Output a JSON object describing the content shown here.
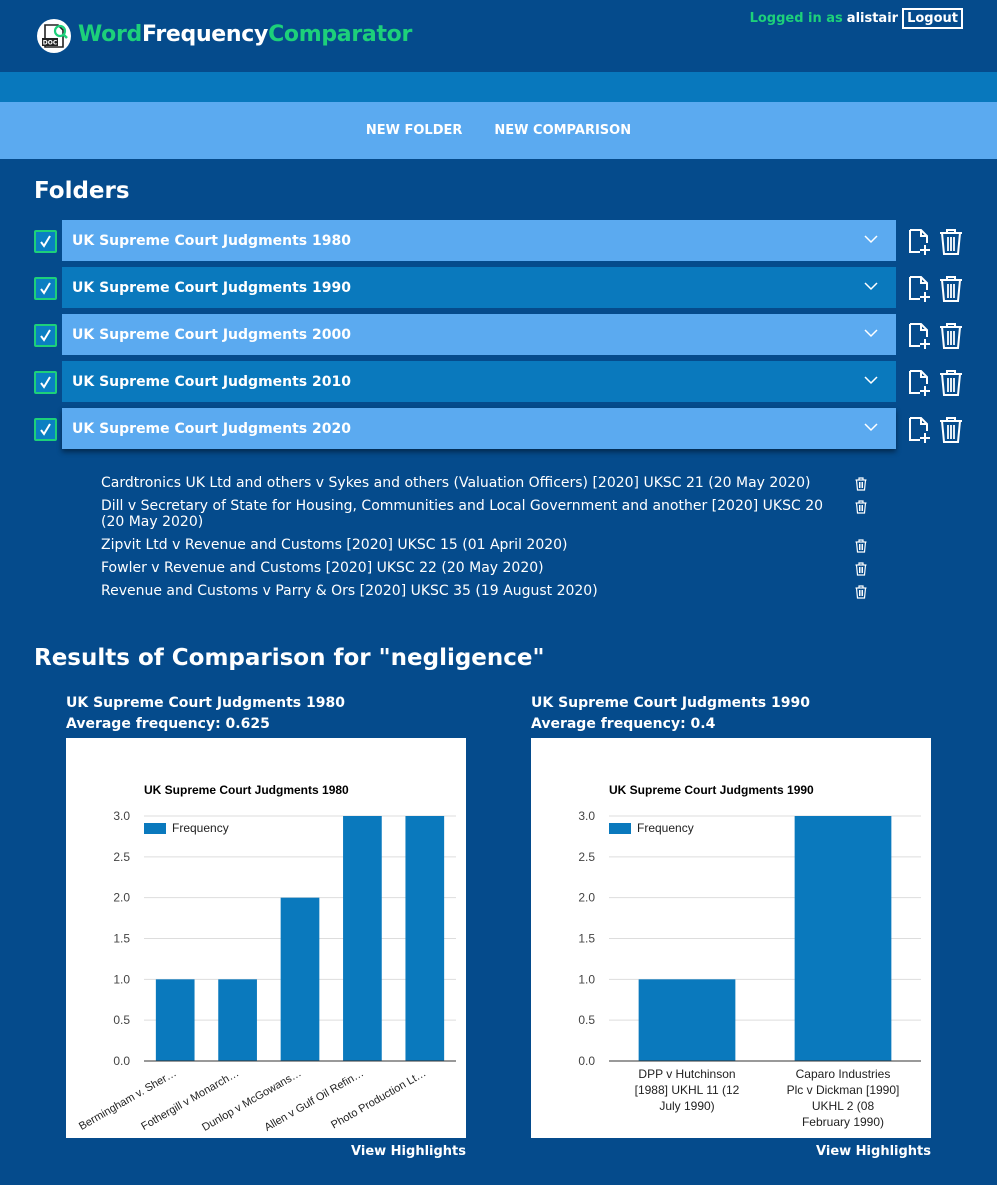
{
  "app": {
    "name_part1": "Word",
    "name_part2": "Frequency",
    "name_part3": "Comparator",
    "logo_text": "DOC"
  },
  "auth": {
    "logged_in_label": "Logged in as",
    "username": "alistair",
    "logout_label": "Logout"
  },
  "nav": {
    "new_folder": "NEW FOLDER",
    "new_comparison": "NEW COMPARISON"
  },
  "folders_heading": "Folders",
  "folders": [
    {
      "title": "UK Supreme Court Judgments 1980",
      "checked": true
    },
    {
      "title": "UK Supreme Court Judgments 1990",
      "checked": true
    },
    {
      "title": "UK Supreme Court Judgments 2000",
      "checked": true
    },
    {
      "title": "UK Supreme Court Judgments 2010",
      "checked": true
    },
    {
      "title": "UK Supreme Court Judgments 2020",
      "checked": true,
      "expanded": true
    }
  ],
  "documents_2020": [
    "Cardtronics UK Ltd and others v Sykes and others (Valuation Officers) [2020] UKSC 21 (20 May 2020)",
    "Dill v Secretary of State for Housing, Communities and Local Government and another [2020] UKSC 20 (20 May 2020)",
    "Zipvit Ltd v Revenue and Customs [2020] UKSC 15 (01 April 2020)",
    "Fowler v Revenue and Customs [2020] UKSC 22 (20 May 2020)",
    "Revenue and Customs v Parry & Ors [2020] UKSC 35 (19 August 2020)"
  ],
  "results": {
    "heading": "Results of Comparison for \"negligence\"",
    "columns": [
      {
        "title": "UK Supreme Court Judgments 1980",
        "average": "Average frequency: 0.625",
        "view_label": "View Highlights"
      },
      {
        "title": "UK Supreme Court Judgments 1990",
        "average": "Average frequency: 0.4",
        "view_label": "View Highlights"
      }
    ]
  },
  "colors": {
    "bar": "#0a79bd",
    "brand_green": "#1dd07a",
    "background": "#054b8c"
  },
  "chart_data": [
    {
      "type": "bar",
      "title": "UK Supreme Court Judgments 1980",
      "legend": [
        "Frequency"
      ],
      "legend_position": "top-left",
      "categories": [
        "Bermingham v. Sher…",
        "Fothergill v Monarch…",
        "Dunlop v McGowans…",
        "Allen v Gulf Oil Refin…",
        "Photo Production Lt…"
      ],
      "values": [
        1,
        1,
        2,
        3,
        3
      ],
      "ylim": [
        0,
        3
      ],
      "yticks": [
        "0.0",
        "0.5",
        "1.0",
        "1.5",
        "2.0",
        "2.5",
        "3.0"
      ],
      "xlabel": "",
      "ylabel": "",
      "grid": true
    },
    {
      "type": "bar",
      "title": "UK Supreme Court Judgments 1990",
      "legend": [
        "Frequency"
      ],
      "legend_position": "top-left",
      "categories": [
        "DPP v Hutchinson [1988] UKHL 11 (12 July 1990)",
        "Caparo Industries Plc v Dickman [1990] UKHL 2 (08 February 1990)"
      ],
      "category_lines": [
        [
          "DPP v Hutchinson",
          "[1988] UKHL 11 (12",
          "July 1990)"
        ],
        [
          "Caparo Industries",
          "Plc v Dickman [1990]",
          "UKHL 2 (08",
          "February 1990)"
        ]
      ],
      "values": [
        1,
        3
      ],
      "ylim": [
        0,
        3
      ],
      "yticks": [
        "0.0",
        "0.5",
        "1.0",
        "1.5",
        "2.0",
        "2.5",
        "3.0"
      ],
      "xlabel": "",
      "ylabel": "",
      "grid": true
    }
  ]
}
